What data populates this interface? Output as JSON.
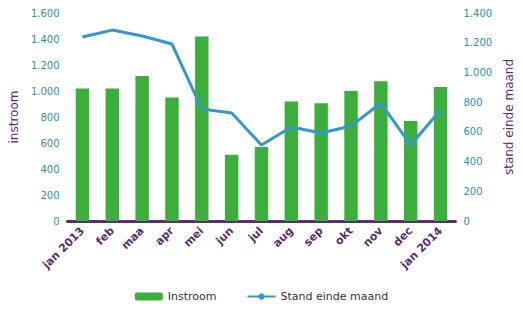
{
  "chart_data": {
    "type": "bar",
    "categories": [
      "jan 2013",
      "feb",
      "maa",
      "apr",
      "mei",
      "jun",
      "jul",
      "aug",
      "sep",
      "okt",
      "nov",
      "dec",
      "jan 2014"
    ],
    "y_label": "instroom",
    "y2_label": "stand einde maand",
    "ylim": [
      0,
      1600
    ],
    "yticks": [
      0,
      200,
      400,
      600,
      800,
      {
        "value": 1000,
        "label": "1.000"
      },
      {
        "value": 1200,
        "label": "1.200"
      },
      {
        "value": 1400,
        "label": "1.400"
      },
      {
        "value": 1600,
        "label": "1.600"
      }
    ],
    "y2lim": [
      0,
      1400
    ],
    "y2ticks": [
      0,
      200,
      400,
      600,
      800,
      {
        "value": 1000,
        "label": "1.000"
      },
      {
        "value": 1200,
        "label": "1.200"
      },
      {
        "value": 1400,
        "label": "1.400"
      }
    ],
    "grid": false,
    "legend": "bottom",
    "series": [
      {
        "name": "Instroom",
        "type": "bar",
        "color": "#3cae3c",
        "values": [
          1020,
          1020,
          1115,
          950,
          1420,
          510,
          570,
          920,
          905,
          1000,
          1075,
          770,
          1030
        ]
      },
      {
        "name": "Stand einde maand",
        "type": "line",
        "axis": "y2",
        "color": "#3399cc",
        "marker": "none",
        "values": [
          1238,
          1285,
          1245,
          1191,
          754,
          727,
          511,
          633,
          592,
          639,
          794,
          511,
          747
        ]
      }
    ]
  }
}
